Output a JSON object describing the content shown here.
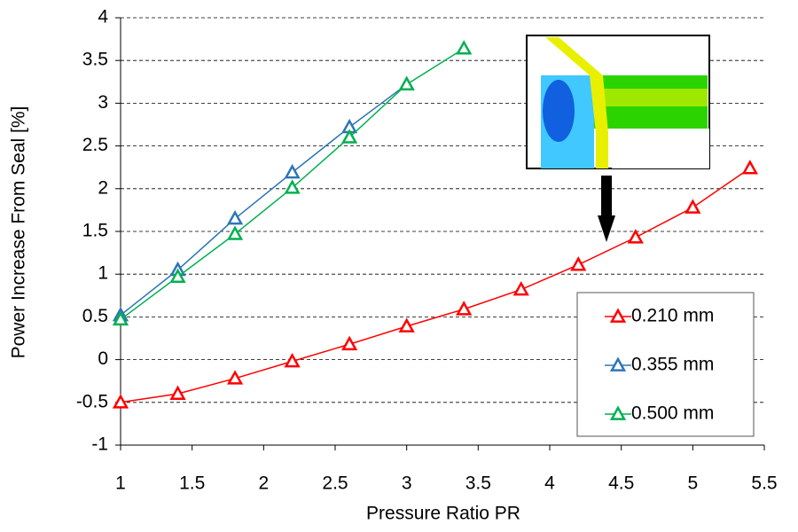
{
  "chart_data": {
    "type": "line",
    "x_label": "Pressure Ratio PR",
    "y_label": "Power Increase From Seal [%]",
    "xlim": [
      1,
      5.5
    ],
    "xticks": [
      1,
      1.5,
      2,
      2.5,
      3,
      3.5,
      4,
      4.5,
      5,
      5.5
    ],
    "ylim": [
      -1,
      4
    ],
    "yticks": [
      -1,
      -0.5,
      0,
      0.5,
      1,
      1.5,
      2,
      2.5,
      3,
      3.5,
      4
    ],
    "grid": true,
    "legend": "lower right",
    "series": [
      {
        "name": "0.210 mm",
        "color": "#ff0000",
        "x": [
          1,
          1.4,
          1.8,
          2.2,
          2.6,
          3,
          3.4,
          3.8,
          4.2,
          4.6,
          5,
          5.4
        ],
        "values": [
          -0.5,
          -0.4,
          -0.22,
          -0.02,
          0.18,
          0.39,
          0.59,
          0.82,
          1.11,
          1.43,
          1.78,
          2.24
        ]
      },
      {
        "name": "0.355 mm",
        "color": "#2e75b6",
        "x": [
          1,
          1.4,
          1.8,
          2.2,
          2.6,
          3
        ],
        "values": [
          0.52,
          1.05,
          1.65,
          2.19,
          2.72,
          3.22
        ]
      },
      {
        "name": "0.500 mm",
        "color": "#00b050",
        "x": [
          1,
          1.4,
          1.8,
          2.2,
          2.6,
          3,
          3.4
        ],
        "values": [
          0.47,
          0.97,
          1.47,
          2.01,
          2.6,
          3.22,
          3.64
        ]
      }
    ]
  }
}
